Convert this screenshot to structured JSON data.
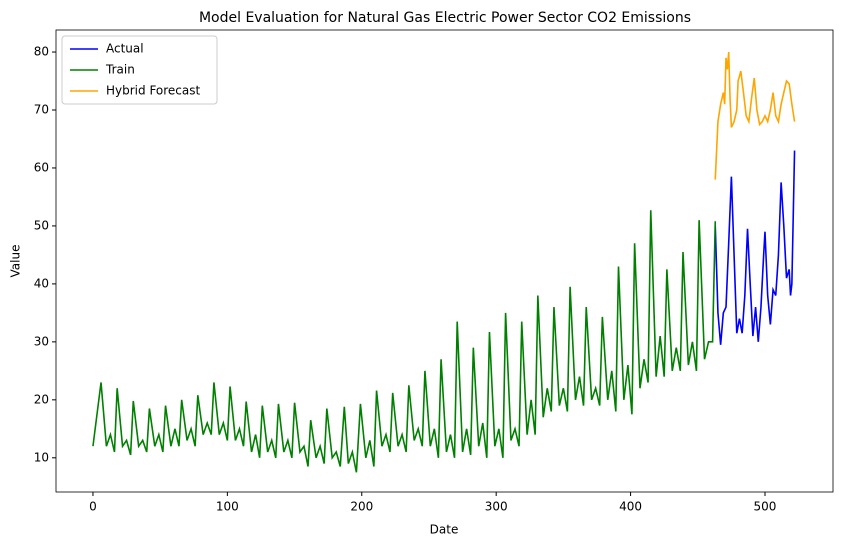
{
  "chart_data": {
    "type": "line",
    "title": "Model Evaluation for Natural Gas Electric Power Sector CO2 Emissions",
    "x_label": "Date",
    "y_label": "Value",
    "xlim": [
      -27.5,
      550.6
    ],
    "ylim": [
      4.1,
      83.8
    ],
    "xticks": [
      0,
      100,
      200,
      300,
      400,
      500
    ],
    "yticks": [
      10,
      20,
      30,
      40,
      50,
      60,
      70,
      80
    ],
    "legend": "upper left",
    "series": [
      {
        "name": "Actual",
        "color": "#0000ff",
        "x": [
          463,
          465,
          467,
          469,
          471,
          473,
          475,
          477,
          479,
          481,
          483,
          485,
          487,
          489,
          491,
          493,
          495,
          497,
          499,
          500,
          502,
          504,
          506,
          508,
          510,
          512,
          514,
          516,
          518,
          519,
          520,
          522
        ],
        "values": [
          50,
          35,
          29.5,
          35,
          36,
          47,
          58.5,
          45,
          31.5,
          34,
          31.5,
          38,
          49.5,
          40,
          31,
          36,
          30,
          36,
          45,
          49,
          38,
          33,
          39,
          38,
          45,
          57.5,
          50,
          41,
          42.5,
          38,
          40,
          63
        ]
      },
      {
        "name": "Train",
        "color": "#008000",
        "x": [
          0,
          6,
          10,
          13,
          16,
          18,
          22,
          25,
          28,
          30,
          34,
          37,
          40,
          42,
          46,
          49,
          52,
          54,
          58,
          61,
          64,
          66,
          70,
          73,
          76,
          78,
          82,
          85,
          88,
          90,
          94,
          97,
          100,
          102,
          106,
          109,
          112,
          114,
          118,
          121,
          124,
          126,
          130,
          133,
          136,
          138,
          142,
          145,
          148,
          150,
          154,
          157,
          160,
          162,
          166,
          169,
          172,
          174,
          178,
          181,
          184,
          187,
          190,
          193,
          196,
          199,
          203,
          206,
          209,
          211,
          215,
          218,
          221,
          223,
          227,
          230,
          233,
          235,
          239,
          242,
          245,
          247,
          251,
          254,
          257,
          259,
          263,
          266,
          269,
          271,
          275,
          278,
          281,
          283,
          287,
          290,
          293,
          295,
          299,
          302,
          305,
          307,
          311,
          314,
          317,
          319,
          323,
          326,
          329,
          331,
          335,
          338,
          341,
          343,
          347,
          350,
          353,
          355,
          359,
          362,
          365,
          367,
          371,
          374,
          377,
          379,
          383,
          386,
          389,
          391,
          395,
          398,
          401,
          403,
          407,
          410,
          413,
          415,
          419,
          422,
          425,
          427,
          431,
          434,
          437,
          439,
          443,
          446,
          449,
          451,
          455,
          458,
          461,
          463
        ],
        "values": [
          12,
          23,
          12,
          14,
          11,
          22,
          12,
          13,
          10.5,
          19.8,
          12,
          13,
          11,
          18.5,
          12,
          14,
          11,
          19,
          12,
          15,
          12,
          20,
          13,
          15,
          12,
          20.8,
          14,
          16,
          14,
          23,
          14,
          16,
          13,
          22.3,
          13,
          15,
          12,
          19.7,
          11,
          14,
          10,
          19,
          11,
          13,
          10,
          19.3,
          11,
          13,
          10,
          19.5,
          11,
          12,
          8.5,
          16.5,
          10,
          12,
          9,
          18.5,
          10,
          11,
          8.5,
          18.8,
          9,
          11,
          7.5,
          19.3,
          10,
          13,
          8.5,
          21.6,
          12,
          14,
          11,
          21.2,
          12,
          14,
          11,
          22.5,
          13,
          15,
          12,
          25,
          12,
          15,
          10,
          27,
          11,
          14,
          10,
          33.5,
          11,
          15,
          10.5,
          29,
          12,
          16,
          10,
          31.7,
          12,
          15,
          10,
          35,
          13,
          15,
          12,
          33.5,
          14,
          20,
          14,
          38,
          17,
          22,
          18,
          36,
          19,
          22,
          18,
          39.5,
          20,
          24,
          19,
          36,
          20,
          22,
          19,
          34.3,
          20,
          25,
          18,
          43,
          20,
          26,
          17.5,
          47,
          22,
          27,
          23,
          52.7,
          24,
          31,
          24,
          42.5,
          25,
          29,
          25,
          45.5,
          26,
          30,
          25,
          51,
          27,
          30,
          30,
          50.8
        ]
      },
      {
        "name": "Hybrid Forecast",
        "color": "#ffa500",
        "x": [
          463,
          465,
          467,
          469,
          470,
          471,
          472,
          473,
          474,
          475,
          477,
          479,
          480,
          482,
          484,
          486,
          488,
          490,
          492,
          494,
          496,
          498,
          500,
          502,
          504,
          506,
          508,
          510,
          512,
          514,
          516,
          518,
          520,
          522
        ],
        "values": [
          58,
          68,
          71,
          73,
          71,
          79,
          77,
          80,
          72,
          67,
          68,
          70,
          75,
          76.7,
          73,
          69,
          68,
          72,
          75.5,
          70,
          67.5,
          68,
          69,
          68,
          70,
          73,
          69,
          68,
          71,
          73,
          75,
          74.5,
          71,
          68
        ]
      }
    ]
  }
}
